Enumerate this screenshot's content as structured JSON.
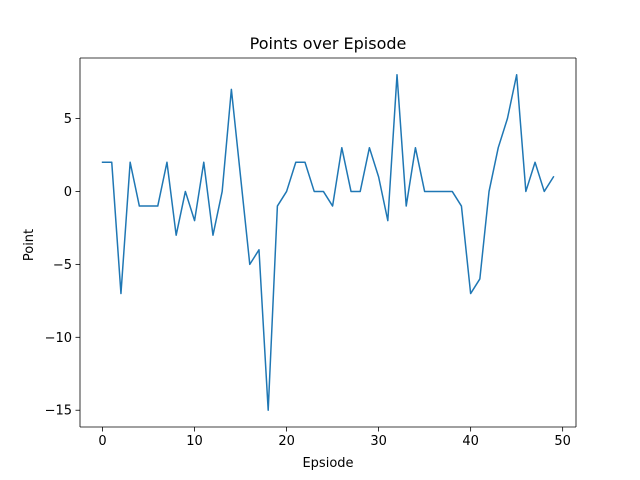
{
  "chart_data": {
    "type": "line",
    "title": "Points over Episode",
    "xlabel": "Epsiode",
    "ylabel": "Point",
    "xlim": [
      -2.45,
      51.45
    ],
    "ylim": [
      -16.15,
      9.15
    ],
    "xticks": [
      0,
      10,
      20,
      30,
      40,
      50
    ],
    "yticks": [
      -15,
      -10,
      -5,
      0,
      5
    ],
    "ytick_labels": [
      "−15",
      "−10",
      "−5",
      "0",
      "5"
    ],
    "grid": false,
    "series": [
      {
        "color": "#1f77b4",
        "x": [
          0,
          1,
          2,
          3,
          4,
          5,
          6,
          7,
          8,
          9,
          10,
          11,
          12,
          13,
          14,
          15,
          16,
          17,
          18,
          19,
          20,
          21,
          22,
          23,
          24,
          25,
          26,
          27,
          28,
          29,
          30,
          31,
          32,
          33,
          34,
          35,
          36,
          37,
          38,
          39,
          40,
          41,
          42,
          43,
          44,
          45,
          46,
          47,
          48,
          49
        ],
        "y": [
          2,
          2,
          -7,
          2,
          -1,
          -1,
          -1,
          2,
          -3,
          0,
          -2,
          2,
          -3,
          0,
          7,
          1,
          -5,
          -4,
          -15,
          -1,
          0,
          2,
          2,
          0,
          0,
          -1,
          3,
          0,
          0,
          3,
          1,
          -2,
          8,
          -1,
          3,
          0,
          0,
          0,
          0,
          -1,
          -7,
          -6,
          0,
          3,
          5,
          8,
          0,
          2,
          0,
          1
        ]
      }
    ]
  }
}
